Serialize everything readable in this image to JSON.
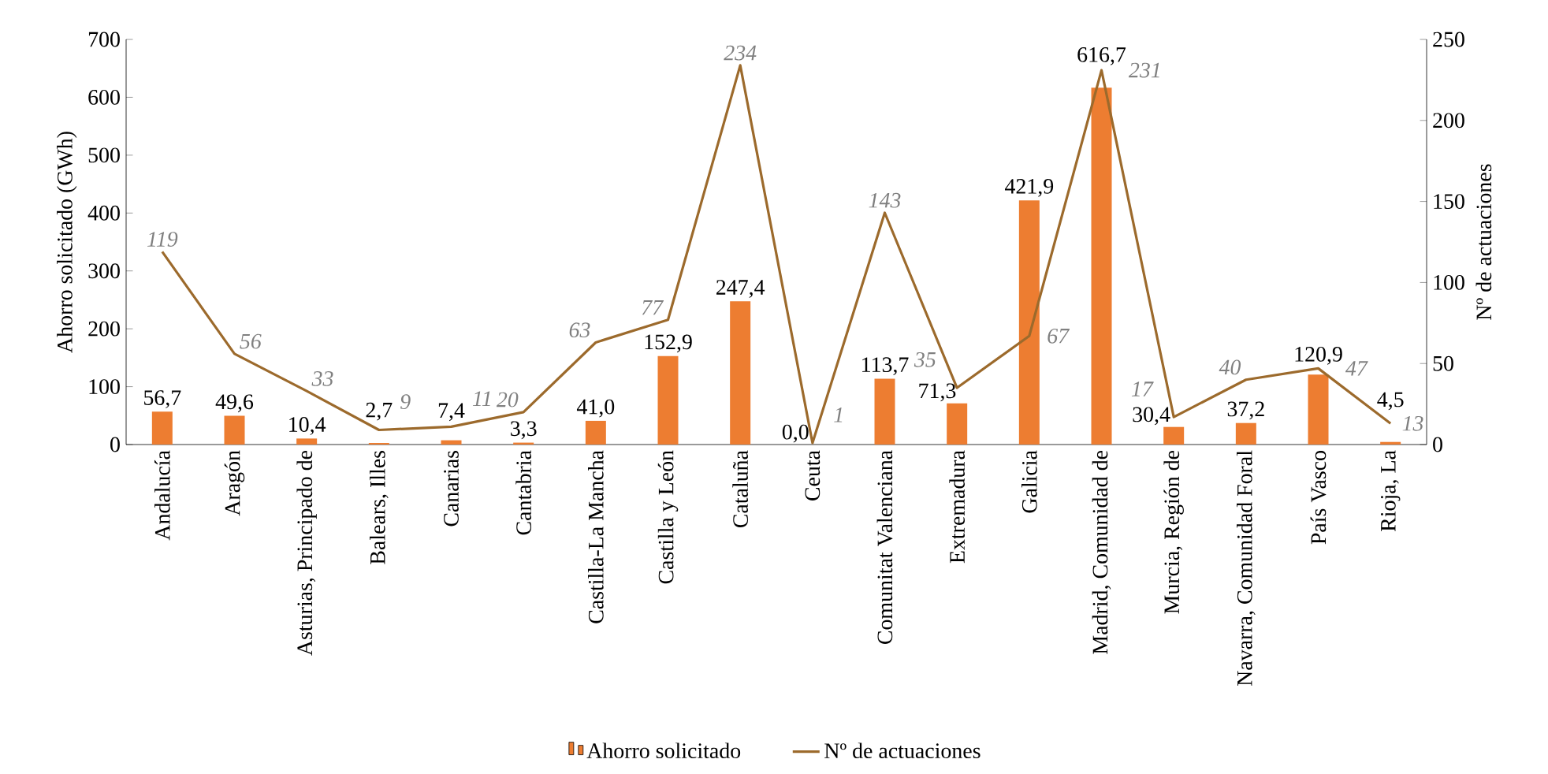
{
  "chart_data": {
    "type": "bar",
    "ylabel": "Ahorro solicitado (GWh)",
    "y2label": "Nº de actuaciones",
    "categories": [
      "Andalucía",
      "Aragón",
      "Asturias, Principado de",
      "Balears, Illes",
      "Canarias",
      "Cantabria",
      "Castilla-La Mancha",
      "Castilla y León",
      "Cataluña",
      "Ceuta",
      "Comunitat Valenciana",
      "Extremadura",
      "Galicia",
      "Madrid, Comunidad de",
      "Murcia, Región de",
      "Navarra, Comunidad Foral",
      "País Vasco",
      "Rioja, La"
    ],
    "series": [
      {
        "name": "Ahorro solicitado",
        "type": "bar",
        "color": "#ed7d31",
        "values": [
          56.7,
          49.6,
          10.4,
          2.7,
          7.4,
          3.3,
          41.0,
          152.9,
          247.4,
          0.0,
          113.7,
          71.3,
          421.9,
          616.7,
          30.4,
          37.2,
          120.9,
          4.5
        ],
        "value_labels": [
          "56,7",
          "49,6",
          "10,4",
          "2,7",
          "7,4",
          "3,3",
          "41,0",
          "152,9",
          "247,4",
          "0,0",
          "113,7",
          "71,3",
          "421,9",
          "616,7",
          "30,4",
          "37,2",
          "120,9",
          "4,5"
        ]
      },
      {
        "name": "Nº de actuaciones",
        "type": "line",
        "axis": "y2",
        "color": "#9c6a2c",
        "values": [
          119,
          56,
          33,
          9,
          11,
          20,
          63,
          77,
          234,
          1,
          143,
          35,
          67,
          231,
          17,
          40,
          47,
          13
        ],
        "value_labels": [
          "119",
          "56",
          "33",
          "9",
          "11",
          "20",
          "63",
          "77",
          "234",
          "1",
          "143",
          "35",
          "67",
          "231",
          "17",
          "40",
          "47",
          "13"
        ]
      }
    ],
    "ylim": [
      0,
      700
    ],
    "yticks": [
      0,
      100,
      200,
      300,
      400,
      500,
      600,
      700
    ],
    "y2lim": [
      0,
      250
    ],
    "y2ticks": [
      0,
      50,
      100,
      150,
      200,
      250
    ],
    "legend": "bottom",
    "grid": false,
    "marker": "none",
    "line_style": "solid"
  }
}
